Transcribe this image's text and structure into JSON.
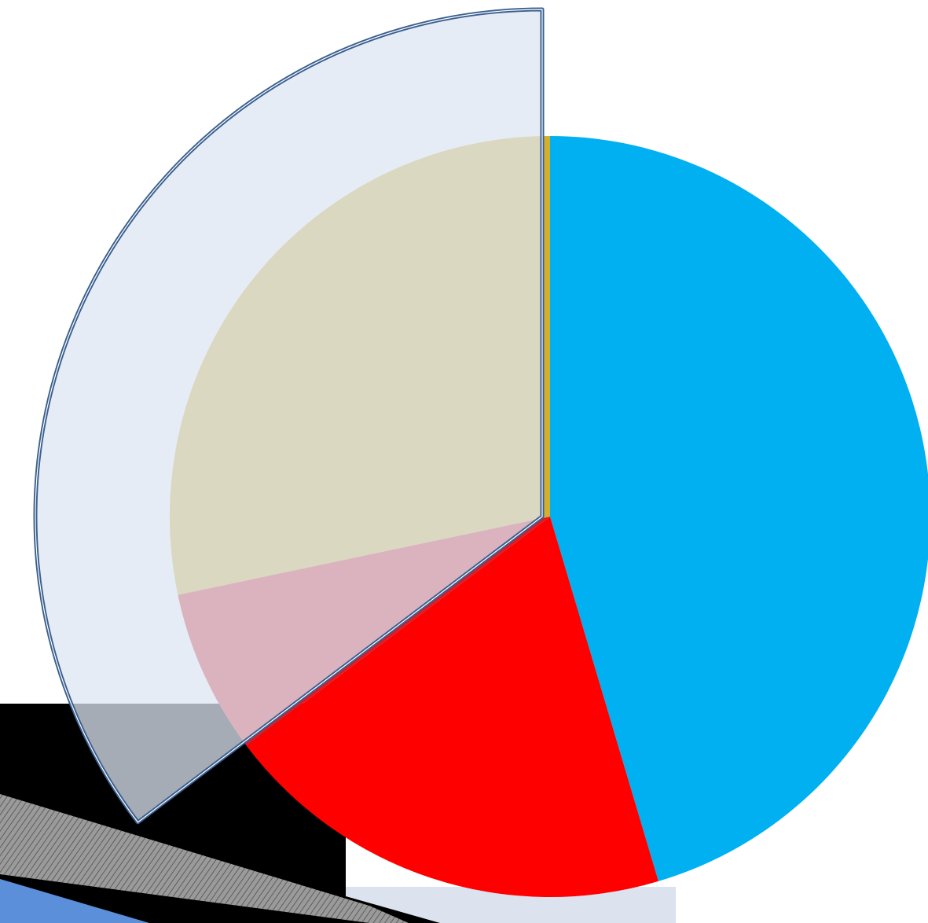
{
  "chart_data": {
    "type": "pie",
    "title": "",
    "start_angle_deg": 0,
    "direction": "clockwise",
    "slices": [
      {
        "value": 45.4,
        "color": "#00b0f0"
      },
      {
        "value": 19.3,
        "color": "#ff0000"
      },
      {
        "value": 7.0,
        "color": "#d31f2a"
      },
      {
        "value": 28.3,
        "color": "#d4af2d"
      }
    ],
    "highlight": {
      "covers_slices": [
        2,
        3
      ],
      "fill": "#dce6f1",
      "fill_opacity": 0.75,
      "stroke": "#3a5f8f"
    }
  },
  "colors": {
    "background": "#ffffff",
    "dark_band": "#000000",
    "stripe": "#7f7f7f",
    "stripe_light": "#aab4c4",
    "accent_blue": "#5b8fd9"
  }
}
